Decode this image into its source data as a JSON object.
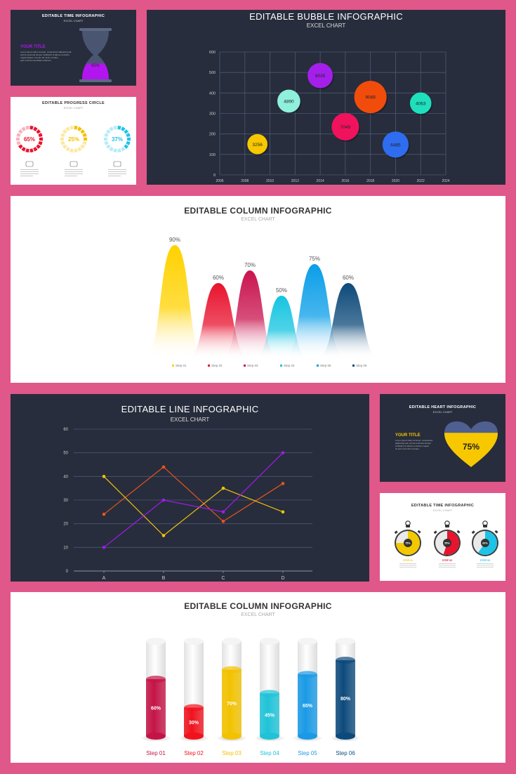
{
  "time_card": {
    "title": "EDITABLE TIME INFOGRAPHIC",
    "subtitle": "EXCEL CHART",
    "heading": "YOUR TITLE",
    "body_lines": [
      "Lorem ipsum dolor sit amet, consectetur adipiscing elit,",
      "sed do eiusmod tempor incididunt ut labore et dolore",
      "magna aliqua. Ut enim ad minim veniam,",
      "quis nostrud exercitation ullamco."
    ],
    "percent_label": "65%",
    "value": 0.65,
    "accent": "#b215f0"
  },
  "progress_card": {
    "title": "EDITABLE PROGRESS CIRCLE",
    "subtitle": "EXCEL CHART",
    "rings": [
      {
        "label": "65%",
        "value": 0.65,
        "color": "#e8132e",
        "light": "#f7b3bd",
        "icon": "handshake-icon"
      },
      {
        "label": "25%",
        "value": 0.25,
        "color": "#f2c200",
        "light": "#fbe9a0",
        "icon": "envelope-icon"
      },
      {
        "label": "37%",
        "value": 0.37,
        "color": "#1fc3e8",
        "light": "#b5ecf7",
        "icon": "head-gear-icon"
      }
    ]
  },
  "bubble_chart": {
    "chart_data": {
      "type": "scatter",
      "title": "EDITABLE BUBBLE INFOGRAPHIC",
      "subtitle": "EXCEL CHART",
      "xlim": [
        2006,
        2024
      ],
      "ylim": [
        0,
        600
      ],
      "x_ticks": [
        "2006",
        "2008",
        "2010",
        "2012",
        "2014",
        "2016",
        "2018",
        "2020",
        "2022",
        "2024"
      ],
      "y_ticks": [
        "0",
        "100",
        "200",
        "300",
        "400",
        "500",
        "600"
      ],
      "grid": true,
      "points": [
        {
          "x": 2009,
          "y": 150,
          "size": 3256,
          "label": "3256",
          "color": "#f7c800"
        },
        {
          "x": 2011.5,
          "y": 360,
          "size": 4890,
          "label": "4890",
          "color": "#8ff0dc"
        },
        {
          "x": 2014,
          "y": 485,
          "size": 6035,
          "label": "6035",
          "color": "#a51fea"
        },
        {
          "x": 2016,
          "y": 235,
          "size": 7049,
          "label": "7049",
          "color": "#f0125c"
        },
        {
          "x": 2018,
          "y": 380,
          "size": 9089,
          "label": "9089",
          "color": "#f24c0c"
        },
        {
          "x": 2020,
          "y": 148,
          "size": 6485,
          "label": "6485",
          "color": "#2f6df0"
        },
        {
          "x": 2022,
          "y": 350,
          "size": 4063,
          "label": "4063",
          "color": "#1fe0bd"
        }
      ]
    }
  },
  "wave_chart": {
    "chart_data": {
      "type": "area",
      "title": "EDITABLE COLUMN INFOGRAPHIC",
      "subtitle": "EXCEL CHART",
      "ylim": [
        0,
        100
      ],
      "series": [
        {
          "name": "Step 01",
          "value": 90,
          "label": "90%",
          "color": "#ffd200"
        },
        {
          "name": "Step 02",
          "value": 60,
          "label": "60%",
          "color": "#e8132e"
        },
        {
          "name": "Step 03",
          "value": 70,
          "label": "70%",
          "color": "#c9144f"
        },
        {
          "name": "Step 04",
          "value": 50,
          "label": "50%",
          "color": "#15c4e0"
        },
        {
          "name": "Step 05",
          "value": 75,
          "label": "75%",
          "color": "#0a9ee8"
        },
        {
          "name": "Step 06",
          "value": 60,
          "label": "60%",
          "color": "#0e4a7a"
        }
      ]
    }
  },
  "line_chart": {
    "chart_data": {
      "type": "line",
      "title": "EDITABLE LINE INFOGRAPHIC",
      "subtitle": "EXCEL CHART",
      "categories": [
        "A",
        "B",
        "C",
        "D"
      ],
      "ylim": [
        0,
        60
      ],
      "y_ticks": [
        "0",
        "10",
        "20",
        "30",
        "40",
        "50",
        "60"
      ],
      "grid": true,
      "series": [
        {
          "values": [
            24,
            44,
            21,
            37
          ],
          "color": "#e8551c"
        },
        {
          "values": [
            40,
            15,
            35,
            25
          ],
          "color": "#f0c20c"
        },
        {
          "values": [
            10,
            30,
            25,
            50
          ],
          "color": "#a319f0"
        }
      ]
    }
  },
  "heart_card": {
    "title": "EDITABLE HEART INFOGRAPHIC",
    "subtitle": "EXCEL CHART",
    "heading": "YOUR TITLE",
    "body_lines": [
      "Lorem ipsum dolor sit amet, consectetur",
      "adipiscing elit, sed do eiusmod tempor",
      "incididunt ut labore et dolore magna.",
      "Ut enim ad minim veniam."
    ],
    "percent_label": "75%",
    "value": 0.75,
    "fill_color": "#f7c800",
    "empty_color": "#4f5f8f",
    "accent": "#f7c800"
  },
  "stopwatch_card": {
    "title": "EDITABLE TIME INFOGRAPHIC",
    "subtitle": "EXCEL CHART",
    "watches": [
      {
        "label": "75%",
        "value": 0.75,
        "color": "#f2c800",
        "step": "STEP 01"
      },
      {
        "label": "55%",
        "value": 0.55,
        "color": "#e8132e",
        "step": "STEP 02"
      },
      {
        "label": "60%",
        "value": 0.6,
        "color": "#1fc3e8",
        "step": "STEP 03"
      }
    ]
  },
  "cylinder_chart": {
    "chart_data": {
      "type": "bar",
      "title": "EDITABLE COLUMN INFOGRAPHIC",
      "subtitle": "EXCEL CHART",
      "ylim": [
        0,
        100
      ],
      "categories": [
        "Step 01",
        "Step 02",
        "Step 03",
        "Step 04",
        "Step 05",
        "Step 06"
      ],
      "values": [
        60,
        30,
        70,
        45,
        65,
        80
      ],
      "labels": [
        "60%",
        "30%",
        "70%",
        "45%",
        "65%",
        "80%"
      ],
      "colors": [
        "#c41446",
        "#f0131e",
        "#f2c200",
        "#1fc3d8",
        "#1a9ae6",
        "#0d4a7c"
      ]
    }
  }
}
